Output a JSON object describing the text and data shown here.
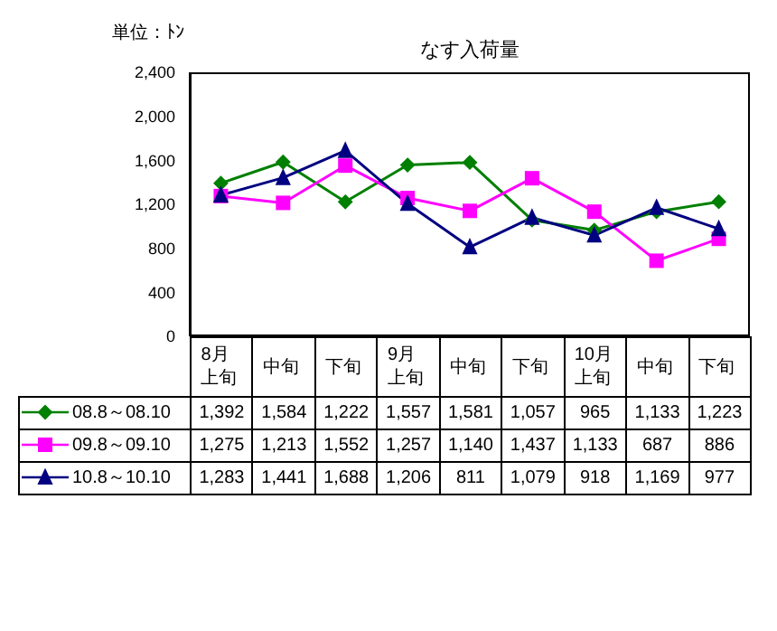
{
  "chart_data": {
    "type": "line",
    "title": "なす入荷量",
    "ylabel": "単位：ﾄﾝ",
    "categories": [
      "8月上旬",
      "中旬",
      "下旬",
      "9月上旬",
      "中旬",
      "下旬",
      "10月上旬",
      "中旬",
      "下旬"
    ],
    "series": [
      {
        "name": "08.8～08.10",
        "color": "#008000",
        "marker": "diamond",
        "values": [
          1392,
          1584,
          1222,
          1557,
          1581,
          1057,
          965,
          1133,
          1223
        ],
        "value_labels": [
          "1,392",
          "1,584",
          "1,222",
          "1,557",
          "1,581",
          "1,057",
          "965",
          "1,133",
          "1,223"
        ]
      },
      {
        "name": "09.8～09.10",
        "color": "#ff00ff",
        "marker": "square",
        "values": [
          1275,
          1213,
          1552,
          1257,
          1140,
          1437,
          1133,
          687,
          886
        ],
        "value_labels": [
          "1,275",
          "1,213",
          "1,552",
          "1,257",
          "1,140",
          "1,437",
          "1,133",
          "687",
          "886"
        ]
      },
      {
        "name": "10.8～10.10",
        "color": "#000080",
        "marker": "triangle",
        "values": [
          1283,
          1441,
          1688,
          1206,
          811,
          1079,
          918,
          1169,
          977
        ],
        "value_labels": [
          "1,283",
          "1,441",
          "1,688",
          "1,206",
          "811",
          "1,079",
          "918",
          "1,169",
          "977"
        ]
      }
    ],
    "ylim": [
      0,
      2400
    ],
    "yticks": [
      0,
      400,
      800,
      {
        "value": 1200,
        "label": "1,200"
      },
      {
        "value": 1600,
        "label": "1,600"
      },
      {
        "value": 2000,
        "label": "2,000"
      },
      {
        "value": 2400,
        "label": "2,400"
      }
    ],
    "grid": false,
    "legend": "bottom",
    "line_style": "solid"
  }
}
